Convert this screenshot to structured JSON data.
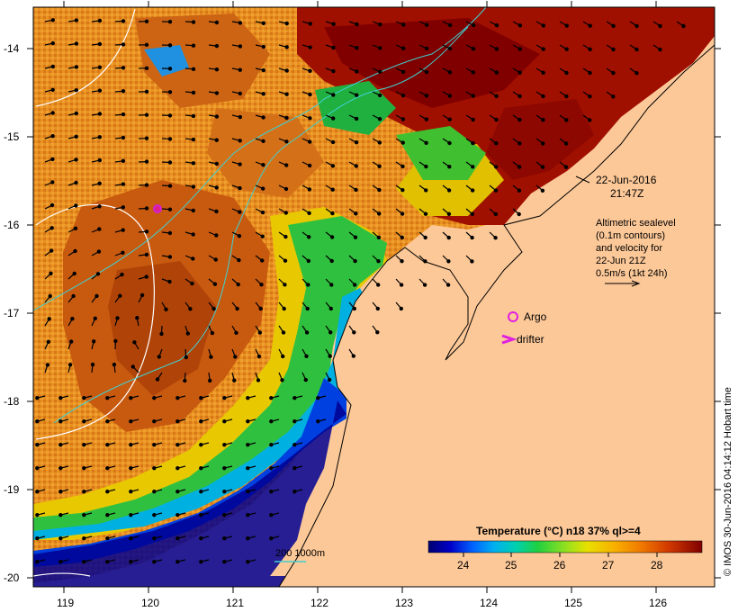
{
  "map": {
    "lat_ticks": [
      "-14",
      "-15",
      "-16",
      "-17",
      "-18",
      "-19",
      "-20"
    ],
    "lon_ticks": [
      "119",
      "120",
      "121",
      "122",
      "123",
      "124",
      "125",
      "126"
    ],
    "land_color": "#fcc898"
  },
  "annotations": {
    "date_line1": "22-Jun-2016",
    "date_line2": "21:47Z",
    "alt_line1": "Altimetric sealevel",
    "alt_line2": "(0.1m contours)",
    "alt_line3": "and velocity for",
    "alt_line4": "22-Jun 21Z",
    "alt_line5": "0.5m/s (1kt 24h)",
    "argo_label": "Argo",
    "drifter_label": "drifter",
    "bathy_label": "200  1000m"
  },
  "colorbar": {
    "title": "Temperature (°C) n18 37% ql>=4",
    "ticks": [
      "24",
      "25",
      "26",
      "27",
      "28"
    ],
    "colors": [
      "#000070",
      "#0000c8",
      "#0040ff",
      "#0090ff",
      "#00d0d0",
      "#00d080",
      "#30d030",
      "#a0e020",
      "#e8e000",
      "#f8b000",
      "#f07800",
      "#d04000",
      "#a01000",
      "#800000"
    ]
  },
  "credit": "© IMOS 30-Jun-2016 04:14:12 Hobart time"
}
